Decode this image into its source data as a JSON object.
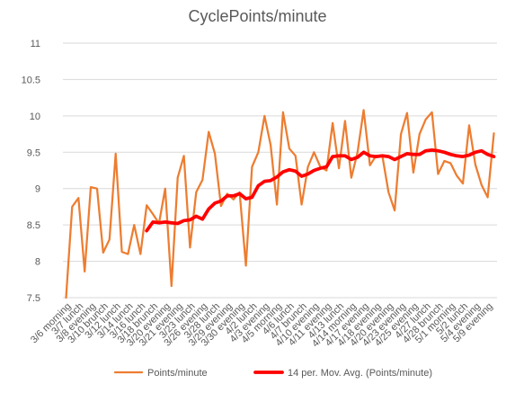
{
  "chart_data": {
    "type": "line",
    "title": "CyclePoints/minute",
    "xlabel": "",
    "ylabel": "",
    "ylim": [
      7.5,
      11
    ],
    "yticks": [
      7.5,
      8,
      8.5,
      9,
      9.5,
      10,
      10.5,
      11
    ],
    "grid": true,
    "legend_position": "bottom",
    "x_labels_shown": [
      "3/6 morning",
      "3/7 lunch",
      "3/8 evening",
      "3/10 brunch",
      "3/12 lunch",
      "3/14 lunch",
      "3/16 lunch",
      "3/18 brunch",
      "3/20 evening",
      "3/21 evening",
      "3/23 lunch",
      "3/26 evening",
      "3/28 lunch",
      "3/29 evening",
      "3/30 evening",
      "4/2 lunch",
      "4/3 evening",
      "4/5 morning",
      "4/6 lunch",
      "4/7 brunch",
      "4/10 evening",
      "4/11 evening",
      "4/13 lunch",
      "4/14 morning",
      "4/17 evening",
      "4/18 evening",
      "4/20 evening",
      "4/23 evening",
      "4/25 evening",
      "4/27 lunch",
      "4/28 brunch",
      "5/1 morning",
      "5/2 lunch",
      "5/4 evening",
      "5/9 evening"
    ],
    "series": [
      {
        "name": "Points/minute",
        "color": "#ED7D31",
        "values": [
          7.5,
          8.75,
          8.87,
          7.86,
          9.02,
          9.0,
          8.12,
          8.3,
          9.48,
          8.13,
          8.1,
          8.5,
          8.1,
          8.77,
          8.65,
          8.52,
          9.0,
          7.66,
          9.15,
          9.45,
          8.19,
          8.95,
          9.12,
          9.78,
          9.48,
          8.76,
          8.93,
          8.85,
          8.95,
          7.94,
          9.3,
          9.5,
          10.0,
          9.6,
          8.78,
          10.05,
          9.55,
          9.45,
          8.78,
          9.3,
          9.5,
          9.3,
          9.25,
          9.9,
          9.28,
          9.93,
          9.15,
          9.5,
          10.08,
          9.32,
          9.45,
          9.45,
          8.95,
          8.7,
          9.75,
          10.04,
          9.22,
          9.75,
          9.95,
          10.05,
          9.2,
          9.38,
          9.35,
          9.18,
          9.07,
          9.87,
          9.33,
          9.05,
          8.88,
          9.76
        ]
      },
      {
        "name": "14 per. Mov. Avg. (Points/minute)",
        "color": "#FF0000",
        "start_index": 13,
        "values": [
          8.42,
          8.54,
          8.53,
          8.54,
          8.53,
          8.52,
          8.56,
          8.57,
          8.62,
          8.58,
          8.72,
          8.8,
          8.83,
          8.9,
          8.9,
          8.93,
          8.86,
          8.88,
          9.04,
          9.1,
          9.11,
          9.16,
          9.23,
          9.26,
          9.24,
          9.17,
          9.2,
          9.25,
          9.28,
          9.3,
          9.44,
          9.45,
          9.45,
          9.4,
          9.43,
          9.5,
          9.45,
          9.44,
          9.45,
          9.44,
          9.4,
          9.44,
          9.48,
          9.47,
          9.47,
          9.52,
          9.53,
          9.52,
          9.5,
          9.47,
          9.45,
          9.44,
          9.46,
          9.5,
          9.52,
          9.47,
          9.44
        ]
      }
    ]
  }
}
